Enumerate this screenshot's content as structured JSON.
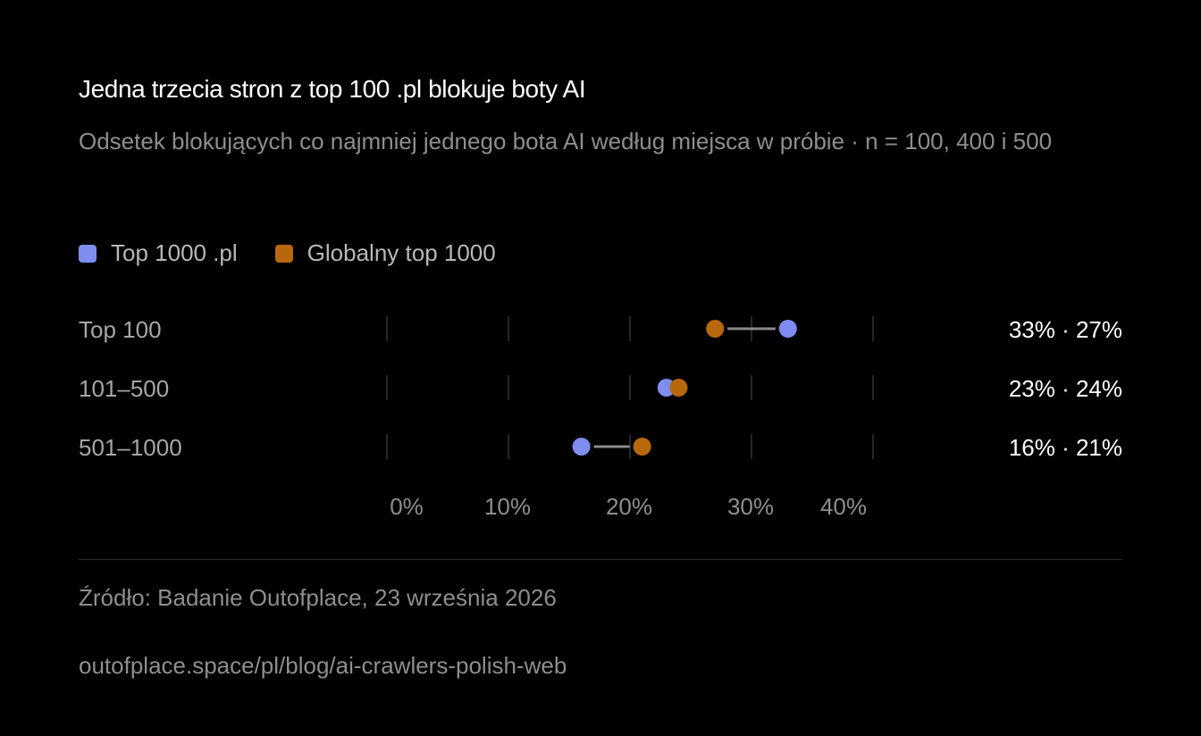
{
  "title": "Jedna trzecia stron z top 100 .pl blokuje boty AI",
  "subtitle": "Odsetek blokujących co najmniej jednego bota AI według miejsca w próbie · n = 100, 400 i 500",
  "legend": [
    {
      "label": "Top 1000 .pl",
      "color": "#7f8cf0"
    },
    {
      "label": "Globalny top 1000",
      "color": "#b8680c"
    }
  ],
  "chart_data": {
    "type": "dot",
    "categories": [
      "Top 100",
      "101–500",
      "501–1000"
    ],
    "series": [
      {
        "name": "Top 1000 .pl",
        "color": "#7f8cf0",
        "values": [
          33,
          23,
          16
        ]
      },
      {
        "name": "Globalny top 1000",
        "color": "#b8680c",
        "values": [
          27,
          24,
          21
        ]
      }
    ],
    "value_labels": [
      "33% · 27%",
      "23% · 24%",
      "16% · 21%"
    ],
    "x_ticks": [
      "0%",
      "10%",
      "20%",
      "30%",
      "40%"
    ],
    "xlim": [
      0,
      40
    ],
    "grid": true
  },
  "footer": {
    "source": "Źródło: Badanie Outofplace, 23 września 2026",
    "url": "outofplace.space/pl/blog/ai-crawlers-polish-web"
  }
}
